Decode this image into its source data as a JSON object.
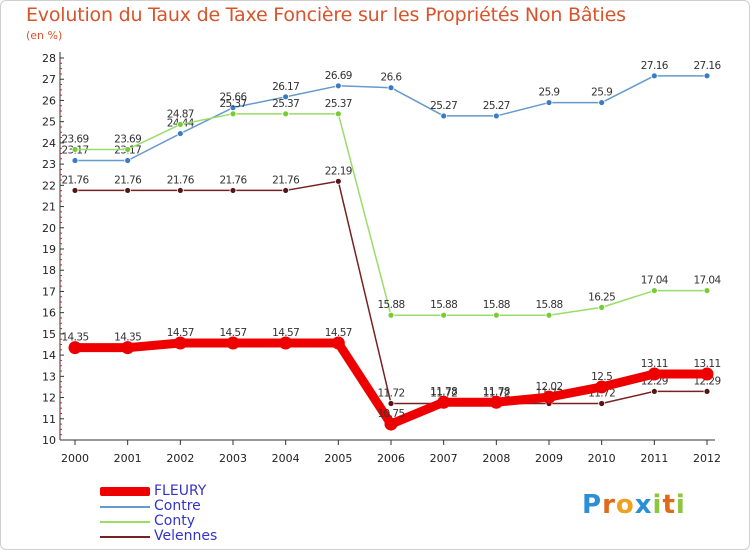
{
  "header": {
    "title": "Evolution du Taux de Taxe Foncière sur les Propriétés Non Bâties",
    "unit": "(en %)"
  },
  "chart_data": {
    "type": "line",
    "title": "Evolution du Taux de Taxe Foncière sur les Propriétés Non Bâties",
    "ylabel": "(en %)",
    "xlabel": "",
    "x": [
      "2000",
      "2001",
      "2002",
      "2003",
      "2004",
      "2005",
      "2006",
      "2007",
      "2008",
      "2009",
      "2010",
      "2011",
      "2012"
    ],
    "ylim": [
      10,
      28
    ],
    "yticks": [
      10,
      11,
      12,
      13,
      14,
      15,
      16,
      17,
      18,
      19,
      20,
      21,
      22,
      23,
      24,
      25,
      26,
      27,
      28
    ],
    "series": [
      {
        "name": "Contre",
        "color": "#6699cc",
        "marker": "#3a7cc4",
        "values": [
          23.17,
          23.17,
          24.44,
          25.66,
          26.17,
          26.69,
          26.6,
          25.27,
          25.27,
          25.9,
          25.9,
          27.16,
          27.16
        ],
        "labels": [
          "23.17",
          "23.17",
          "24.44",
          "25.66",
          "26.17",
          "26.69",
          "26.6",
          "25.27",
          "25.27",
          "25.9",
          "25.9",
          "27.16",
          "27.16"
        ]
      },
      {
        "name": "Conty",
        "color": "#99dd66",
        "marker": "#77cc33",
        "values": [
          23.69,
          23.69,
          24.87,
          25.37,
          25.37,
          25.37,
          15.88,
          15.88,
          15.88,
          15.88,
          16.25,
          17.04,
          17.04
        ],
        "labels": [
          "23.69",
          "23.69",
          "24.87",
          "25.37",
          "25.37",
          "25.37",
          "15.88",
          "15.88",
          "15.88",
          "15.88",
          "16.25",
          "17.04",
          "17.04"
        ]
      },
      {
        "name": "Velennes",
        "color": "#772222",
        "marker": "#551515",
        "values": [
          21.76,
          21.76,
          21.76,
          21.76,
          21.76,
          22.19,
          11.72,
          11.72,
          11.72,
          11.72,
          11.72,
          12.29,
          12.29
        ],
        "labels": [
          "21.76",
          "21.76",
          "21.76",
          "21.76",
          "21.76",
          "22.19",
          "11.72",
          "11.72",
          "11.72",
          "11.72",
          "11.72",
          "12.29",
          "12.29"
        ]
      },
      {
        "name": "FLEURY",
        "color": "#ee0000",
        "marker": "#ee0000",
        "values": [
          14.35,
          14.35,
          14.57,
          14.57,
          14.57,
          14.57,
          10.75,
          11.78,
          11.78,
          12.02,
          12.5,
          13.11,
          13.11
        ],
        "labels": [
          "14.35",
          "14.35",
          "14.57",
          "14.57",
          "14.57",
          "14.57",
          "10.75",
          "11.78",
          "11.78",
          "12.02",
          "12.5",
          "13.11",
          "13.11"
        ]
      }
    ],
    "legend": [
      "FLEURY",
      "Contre",
      "Conty",
      "Velennes"
    ],
    "legend_position": "bottom-left",
    "grid": false
  },
  "legend": {
    "items": [
      {
        "name": "FLEURY",
        "color": "#ee0000"
      },
      {
        "name": "Contre",
        "color": "#6699cc"
      },
      {
        "name": "Conty",
        "color": "#99dd66"
      },
      {
        "name": "Velennes",
        "color": "#772222"
      }
    ]
  },
  "logo": {
    "text": "Proxiti",
    "letters": [
      "P",
      "r",
      "o",
      "x",
      "i",
      "t",
      "i"
    ],
    "colors": [
      "#2a8fd6",
      "#e06a1b",
      "#f0a020",
      "#2a8fd6",
      "#8cc63f",
      "#e06a1b",
      "#8cc63f"
    ]
  }
}
